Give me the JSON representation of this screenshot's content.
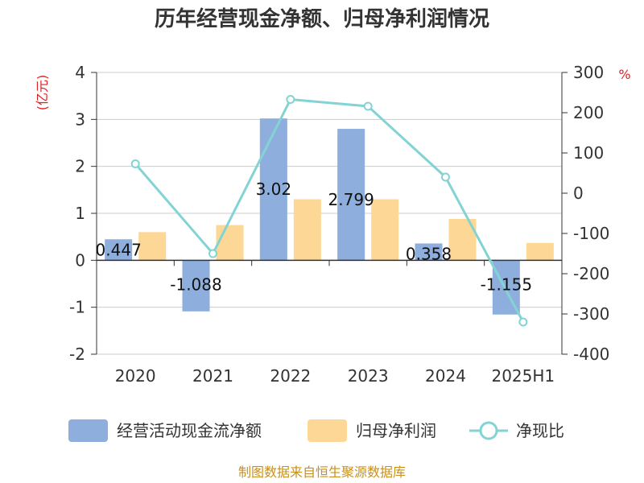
{
  "chart_data": {
    "type": "bar",
    "title": "历年经营现金净额、归母净利润情况",
    "categories": [
      "2020",
      "2021",
      "2022",
      "2023",
      "2024",
      "2025H1"
    ],
    "left_unit": "(亿元)",
    "right_unit": "%",
    "y_left": {
      "ylim": [
        -2,
        4
      ],
      "ticks": [
        "-2",
        "-1",
        "0",
        "1",
        "2",
        "3",
        "4"
      ]
    },
    "y_right": {
      "ylim": [
        -400,
        300
      ],
      "ticks": [
        "-400",
        "-300",
        "-200",
        "-100",
        "0",
        "100",
        "200",
        "300"
      ]
    },
    "grid": true,
    "legend_position": "bottom",
    "series": [
      {
        "name": "经营活动现金流净额",
        "axis": "left",
        "kind": "bar",
        "color": "#8eaedd",
        "values": [
          0.447,
          -1.088,
          3.02,
          2.799,
          0.358,
          -1.155
        ],
        "labels": [
          "0.447",
          "-1.088",
          "3.02",
          "2.799",
          "0.358",
          "-1.155"
        ]
      },
      {
        "name": "归母净利润",
        "axis": "left",
        "kind": "bar",
        "color": "#fdd795",
        "values": [
          0.6,
          0.75,
          1.3,
          1.3,
          0.88,
          0.37
        ]
      },
      {
        "name": "净现比",
        "axis": "right",
        "kind": "line",
        "color": "#84d3d4",
        "values": [
          73,
          -150,
          233,
          216,
          40,
          -320
        ]
      }
    ]
  },
  "source": "制图数据来自恒生聚源数据库"
}
